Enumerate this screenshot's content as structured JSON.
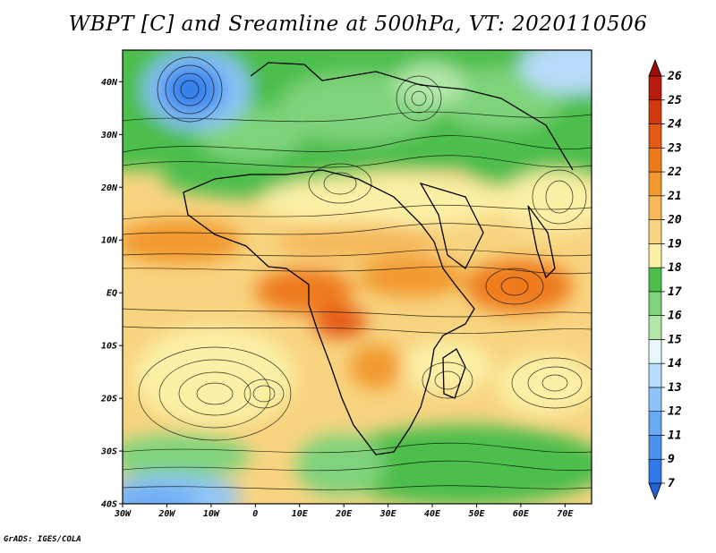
{
  "title": "WBPT [C] and Sreamline at 500hPa, VT: 2020110506",
  "credit": "GrADS: IGES/COLA",
  "map": {
    "lon_range": [
      -30,
      76
    ],
    "lat_range": [
      -40,
      46
    ],
    "lat_ticks": [
      {
        "value": 40,
        "label": "40N"
      },
      {
        "value": 30,
        "label": "30N"
      },
      {
        "value": 20,
        "label": "20N"
      },
      {
        "value": 10,
        "label": "10N"
      },
      {
        "value": 0,
        "label": "EQ"
      },
      {
        "value": -10,
        "label": "10S"
      },
      {
        "value": -20,
        "label": "20S"
      },
      {
        "value": -30,
        "label": "30S"
      },
      {
        "value": -40,
        "label": "40S"
      }
    ],
    "lon_ticks": [
      {
        "value": -30,
        "label": "30W"
      },
      {
        "value": -20,
        "label": "20W"
      },
      {
        "value": -10,
        "label": "10W"
      },
      {
        "value": 0,
        "label": "0"
      },
      {
        "value": 10,
        "label": "10E"
      },
      {
        "value": 20,
        "label": "20E"
      },
      {
        "value": 30,
        "label": "30E"
      },
      {
        "value": 40,
        "label": "40E"
      },
      {
        "value": 50,
        "label": "50E"
      },
      {
        "value": 60,
        "label": "60E"
      },
      {
        "value": 70,
        "label": "70E"
      }
    ]
  },
  "colorbar": {
    "labels": [
      "7",
      "9",
      "11",
      "12",
      "13",
      "14",
      "15",
      "16",
      "17",
      "18",
      "19",
      "20",
      "21",
      "22",
      "23",
      "24",
      "25",
      "26"
    ],
    "colors": [
      "#1f63d6",
      "#2f7ae6",
      "#4a92f0",
      "#6aaaf4",
      "#8ec4f8",
      "#b8dcfb",
      "#e6f6fb",
      "#b3e7a9",
      "#7fd37a",
      "#4cbe4c",
      "#fbf0a6",
      "#f8d480",
      "#f5b85a",
      "#f29a2e",
      "#ee7a1a",
      "#e45a12",
      "#d23a0e",
      "#b81b0b",
      "#9c0f08"
    ]
  }
}
